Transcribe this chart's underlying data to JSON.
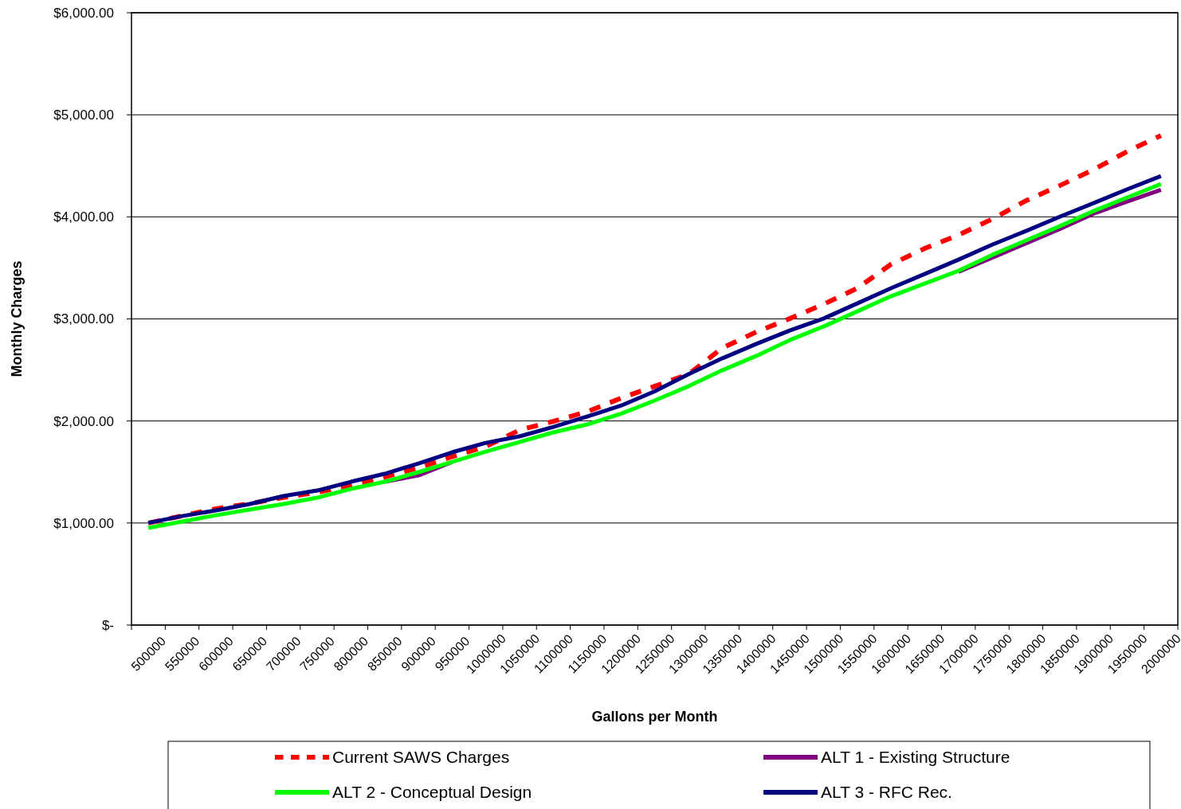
{
  "chart_data": {
    "type": "line",
    "xlabel": "Gallons per Month",
    "ylabel": "Monthly Charges",
    "categories": [
      "500000",
      "550000",
      "600000",
      "650000",
      "700000",
      "750000",
      "800000",
      "850000",
      "900000",
      "950000",
      "1000000",
      "1050000",
      "1100000",
      "1150000",
      "1200000",
      "1250000",
      "1300000",
      "1350000",
      "1400000",
      "1450000",
      "1500000",
      "1550000",
      "1600000",
      "1650000",
      "1700000",
      "1750000",
      "1800000",
      "1850000",
      "1900000",
      "1950000",
      "2000000"
    ],
    "ylim": [
      0,
      6000
    ],
    "yticks": [
      {
        "value": 0,
        "label": "$-"
      },
      {
        "value": 1000,
        "label": "$1,000.00"
      },
      {
        "value": 2000,
        "label": "$2,000.00"
      },
      {
        "value": 3000,
        "label": "$3,000.00"
      },
      {
        "value": 4000,
        "label": "$4,000.00"
      },
      {
        "value": 5000,
        "label": "$5,000.00"
      },
      {
        "value": 6000,
        "label": "$6,000.00"
      }
    ],
    "grid": "y",
    "legend": "bottom",
    "marker": "none",
    "series": [
      {
        "name": "Current SAWS Charges",
        "color": "#ff0000",
        "line_style": "dashed",
        "values": [
          1000,
          1070,
          1140,
          1190,
          1250,
          1300,
          1370,
          1450,
          1540,
          1650,
          1750,
          1911,
          1997,
          2090,
          2223,
          2340,
          2457,
          2714,
          2870,
          3003,
          3143,
          3300,
          3534,
          3690,
          3822,
          3978,
          4158,
          4306,
          4462,
          4641,
          4797
        ]
      },
      {
        "name": "ALT 1 - Existing Structure",
        "color": "#800080",
        "line_style": "solid",
        "values": [
          null,
          null,
          null,
          null,
          null,
          null,
          null,
          1404,
          1466,
          1599,
          null,
          null,
          null,
          null,
          null,
          null,
          null,
          null,
          null,
          null,
          null,
          null,
          null,
          null,
          3460,
          3600,
          3740,
          3880,
          4030,
          4150,
          4265
        ]
      },
      {
        "name": "ALT 2 - Conceptual Design",
        "color": "#00ff00",
        "line_style": "solid",
        "values": [
          952,
          1014,
          1076,
          1131,
          1186,
          1248,
          1334,
          1404,
          1498,
          1599,
          1700,
          1794,
          1888,
          1966,
          2070,
          2200,
          2340,
          2496,
          2636,
          2792,
          2925,
          3073,
          3222,
          3346,
          3471,
          3627,
          3768,
          3908,
          4056,
          4190,
          4321
        ]
      },
      {
        "name": "ALT 3 - RFC Rec.",
        "color": "#000080",
        "line_style": "solid",
        "values": [
          1002,
          1068,
          1123,
          1186,
          1264,
          1318,
          1404,
          1482,
          1583,
          1693,
          1786,
          1849,
          1942,
          2044,
          2150,
          2290,
          2457,
          2613,
          2753,
          2886,
          3003,
          3151,
          3300,
          3440,
          3580,
          3728,
          3861,
          4001,
          4134,
          4270,
          4400
        ]
      }
    ]
  }
}
